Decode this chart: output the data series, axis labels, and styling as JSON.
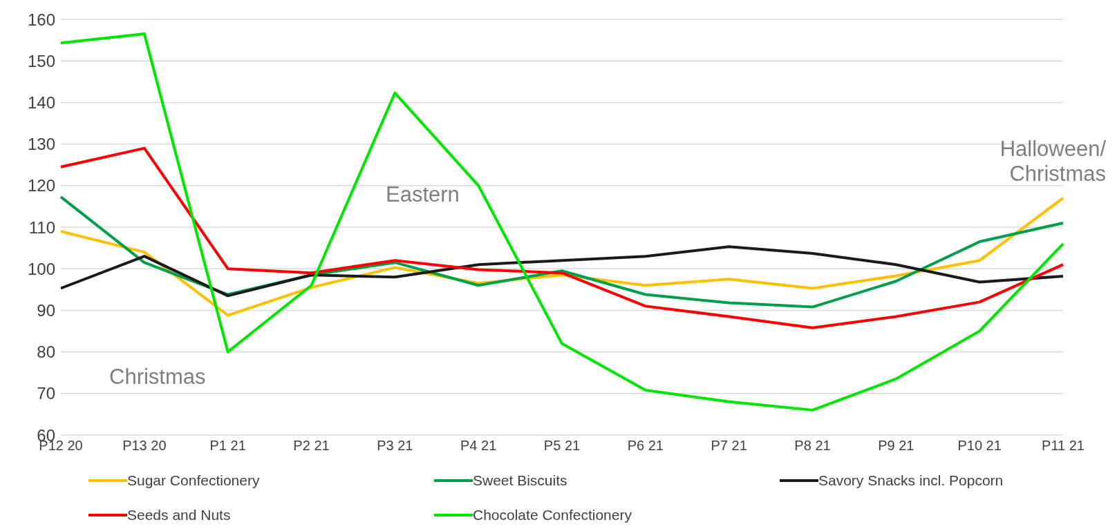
{
  "chart_data": {
    "type": "line",
    "categories": [
      "P12 20",
      "P13 20",
      "P1 21",
      "P2 21",
      "P3 21",
      "P4 21",
      "P5 21",
      "P6 21",
      "P7 21",
      "P8 21",
      "P9 21",
      "P10 21",
      "P11 21"
    ],
    "series": [
      {
        "name": "Sugar Confectionery",
        "color": "#ffc000",
        "values": [
          109,
          104,
          88.8,
          95.5,
          100.3,
          96.5,
          98.5,
          96,
          97.5,
          95.3,
          98.3,
          102,
          117
        ]
      },
      {
        "name": "Sweet Biscuits",
        "color": "#00a04a",
        "values": [
          117.3,
          101.5,
          93.8,
          98.5,
          101.5,
          96,
          99.5,
          93.8,
          91.8,
          90.8,
          97,
          106.5,
          111
        ]
      },
      {
        "name": "Savory Snacks incl. Popcorn",
        "color": "#1a1a1a",
        "values": [
          95.3,
          103,
          93.5,
          98.5,
          98,
          101,
          102,
          103,
          105.3,
          103.7,
          101,
          96.8,
          98.2
        ]
      },
      {
        "name": "Seeds and Nuts",
        "color": "#ff0000",
        "values": [
          124.5,
          129,
          100,
          99,
          102,
          99.8,
          99,
          91,
          88.5,
          85.8,
          88.5,
          92,
          101
        ]
      },
      {
        "name": "Chocolate Confectionery",
        "color": "#00e600",
        "values": [
          154.3,
          156.5,
          80,
          96,
          142.3,
          120,
          82,
          70.8,
          68,
          66,
          73.5,
          85,
          106
        ]
      }
    ],
    "ylim": [
      60,
      160
    ],
    "yticks": [
      60,
      70,
      80,
      90,
      100,
      110,
      120,
      130,
      140,
      150,
      160
    ],
    "grid": "y",
    "legend": "bottom",
    "marker": "none",
    "line_style": "solid",
    "annotations": [
      "Christmas",
      "Eastern",
      "Halloween/ Christmas"
    ]
  }
}
